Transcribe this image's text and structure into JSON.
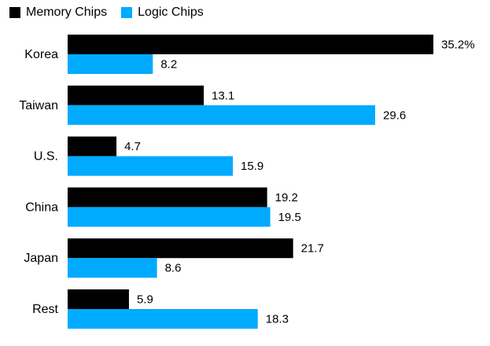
{
  "chart_data": {
    "type": "bar",
    "orientation": "horizontal",
    "categories": [
      "Korea",
      "Taiwan",
      "U.S.",
      "China",
      "Japan",
      "Rest"
    ],
    "series": [
      {
        "name": "Memory Chips",
        "color": "#000000",
        "values": [
          35.2,
          13.1,
          4.7,
          19.2,
          21.7,
          5.9
        ],
        "labels": [
          "35.2%",
          "13.1",
          "4.7",
          "19.2",
          "21.7",
          "5.9"
        ]
      },
      {
        "name": "Logic Chips",
        "color": "#00aaff",
        "values": [
          8.2,
          29.6,
          15.9,
          19.5,
          8.6,
          18.3
        ],
        "labels": [
          "8.2",
          "29.6",
          "15.9",
          "19.5",
          "8.6",
          "18.3"
        ]
      }
    ],
    "xlim": [
      0,
      35.2
    ],
    "grid": false,
    "legend_position": "top-left"
  }
}
